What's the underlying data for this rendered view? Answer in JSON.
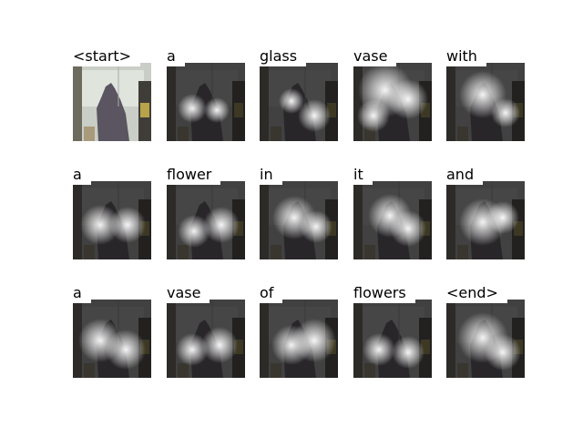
{
  "caption": {
    "tokens": [
      "<start>",
      "a",
      "glass",
      "vase",
      "with",
      "a",
      "flower",
      "in",
      "it",
      "and",
      "a",
      "vase",
      "of",
      "flowers",
      "<end>"
    ]
  },
  "colors": {
    "background": "#ffffff",
    "text": "#000000"
  }
}
